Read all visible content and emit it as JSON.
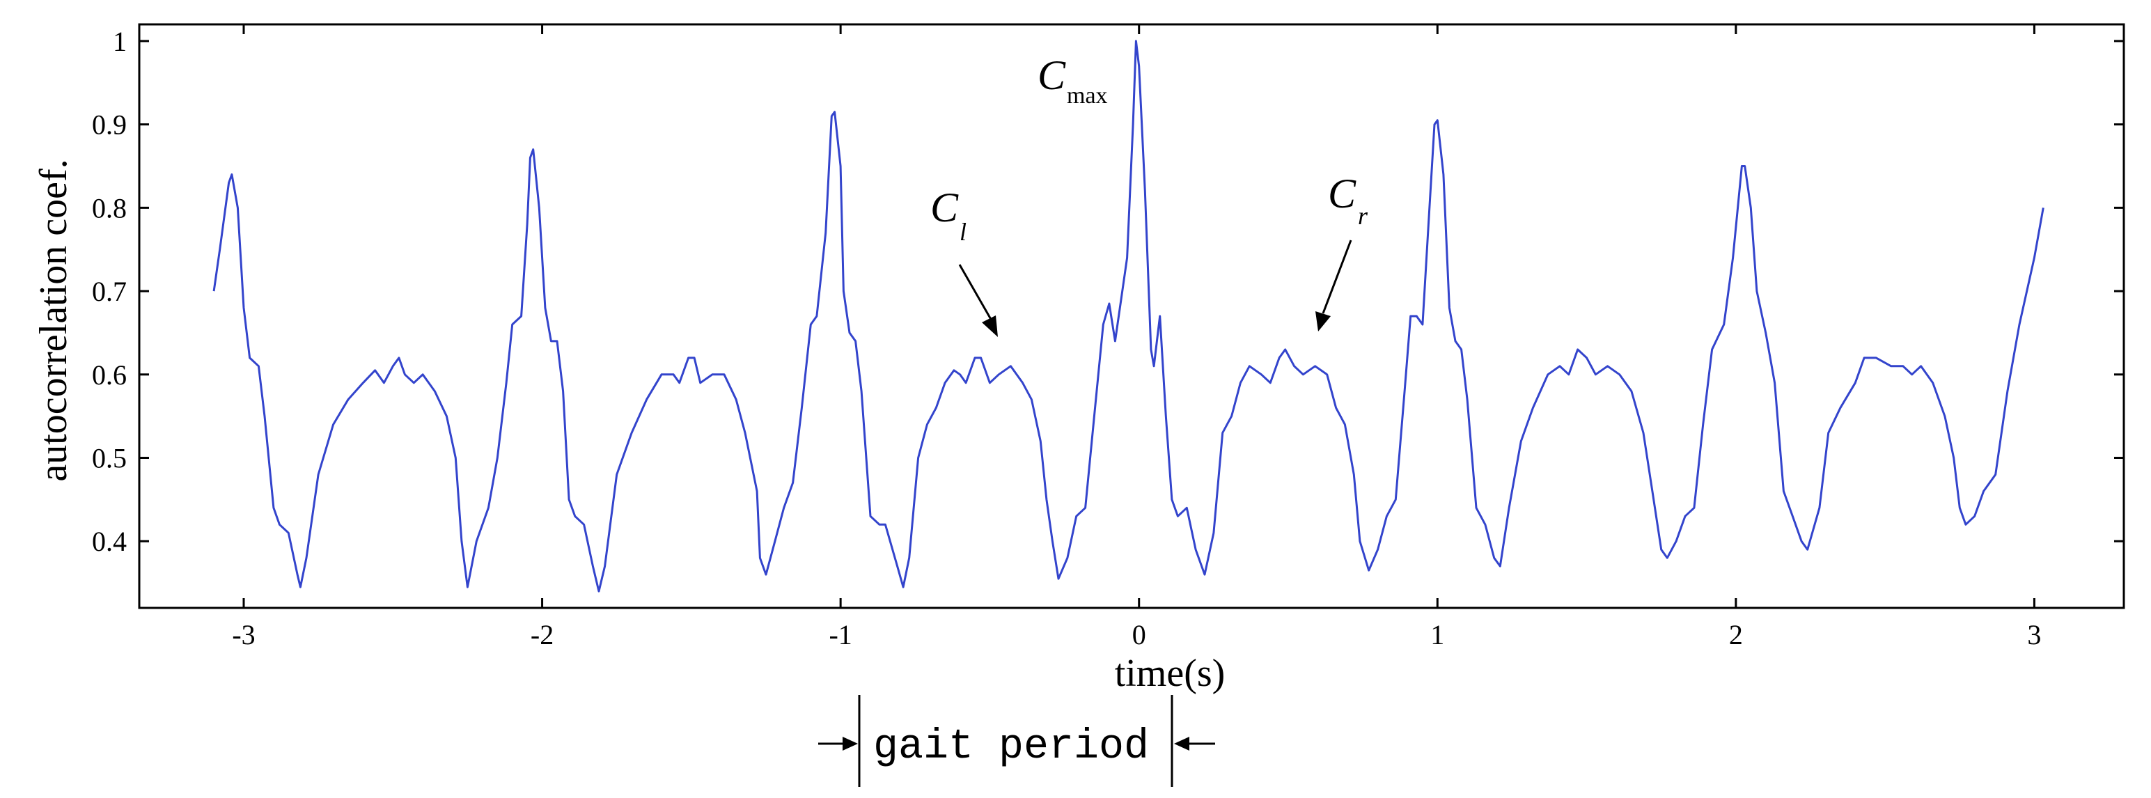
{
  "chart_data": {
    "type": "line",
    "title": "",
    "xlabel": "time(s)",
    "ylabel": "autocorrelation coef.",
    "xlim": [
      -3.35,
      3.3
    ],
    "ylim": [
      0.32,
      1.02
    ],
    "xticks": [
      -3,
      -2,
      -1,
      0,
      1,
      2,
      3
    ],
    "xtick_labels": [
      "-3",
      "-2",
      "-1",
      "0",
      "1",
      "2",
      "3"
    ],
    "yticks": [
      0.4,
      0.5,
      0.6,
      0.7,
      0.8,
      0.9,
      1.0
    ],
    "ytick_labels": [
      "0.4",
      "0.5",
      "0.6",
      "0.7",
      "0.8",
      "0.9",
      "1"
    ],
    "grid": false,
    "line_color": "#3344cc",
    "series": [
      {
        "points": [
          [
            -3.1,
            0.7
          ],
          [
            -3.08,
            0.75
          ],
          [
            -3.05,
            0.83
          ],
          [
            -3.04,
            0.84
          ],
          [
            -3.02,
            0.8
          ],
          [
            -3.0,
            0.68
          ],
          [
            -2.98,
            0.62
          ],
          [
            -2.95,
            0.61
          ],
          [
            -2.93,
            0.55
          ],
          [
            -2.9,
            0.44
          ],
          [
            -2.88,
            0.42
          ],
          [
            -2.85,
            0.41
          ],
          [
            -2.82,
            0.36
          ],
          [
            -2.81,
            0.345
          ],
          [
            -2.79,
            0.38
          ],
          [
            -2.75,
            0.48
          ],
          [
            -2.7,
            0.54
          ],
          [
            -2.65,
            0.57
          ],
          [
            -2.6,
            0.59
          ],
          [
            -2.56,
            0.605
          ],
          [
            -2.53,
            0.59
          ],
          [
            -2.5,
            0.61
          ],
          [
            -2.48,
            0.62
          ],
          [
            -2.46,
            0.6
          ],
          [
            -2.43,
            0.59
          ],
          [
            -2.4,
            0.6
          ],
          [
            -2.36,
            0.58
          ],
          [
            -2.32,
            0.55
          ],
          [
            -2.29,
            0.5
          ],
          [
            -2.27,
            0.4
          ],
          [
            -2.25,
            0.345
          ],
          [
            -2.22,
            0.4
          ],
          [
            -2.18,
            0.44
          ],
          [
            -2.15,
            0.5
          ],
          [
            -2.12,
            0.59
          ],
          [
            -2.1,
            0.66
          ],
          [
            -2.07,
            0.67
          ],
          [
            -2.05,
            0.78
          ],
          [
            -2.04,
            0.86
          ],
          [
            -2.03,
            0.87
          ],
          [
            -2.01,
            0.8
          ],
          [
            -1.99,
            0.68
          ],
          [
            -1.97,
            0.64
          ],
          [
            -1.95,
            0.64
          ],
          [
            -1.93,
            0.58
          ],
          [
            -1.91,
            0.45
          ],
          [
            -1.89,
            0.43
          ],
          [
            -1.86,
            0.42
          ],
          [
            -1.83,
            0.37
          ],
          [
            -1.81,
            0.34
          ],
          [
            -1.79,
            0.37
          ],
          [
            -1.75,
            0.48
          ],
          [
            -1.7,
            0.53
          ],
          [
            -1.65,
            0.57
          ],
          [
            -1.6,
            0.6
          ],
          [
            -1.56,
            0.6
          ],
          [
            -1.54,
            0.59
          ],
          [
            -1.51,
            0.62
          ],
          [
            -1.49,
            0.62
          ],
          [
            -1.47,
            0.59
          ],
          [
            -1.43,
            0.6
          ],
          [
            -1.39,
            0.6
          ],
          [
            -1.35,
            0.57
          ],
          [
            -1.32,
            0.53
          ],
          [
            -1.28,
            0.46
          ],
          [
            -1.27,
            0.38
          ],
          [
            -1.25,
            0.36
          ],
          [
            -1.22,
            0.4
          ],
          [
            -1.19,
            0.44
          ],
          [
            -1.16,
            0.47
          ],
          [
            -1.13,
            0.56
          ],
          [
            -1.1,
            0.66
          ],
          [
            -1.08,
            0.67
          ],
          [
            -1.05,
            0.77
          ],
          [
            -1.03,
            0.91
          ],
          [
            -1.02,
            0.915
          ],
          [
            -1.0,
            0.85
          ],
          [
            -0.99,
            0.7
          ],
          [
            -0.97,
            0.65
          ],
          [
            -0.95,
            0.64
          ],
          [
            -0.93,
            0.58
          ],
          [
            -0.9,
            0.43
          ],
          [
            -0.87,
            0.42
          ],
          [
            -0.85,
            0.42
          ],
          [
            -0.81,
            0.37
          ],
          [
            -0.79,
            0.345
          ],
          [
            -0.77,
            0.38
          ],
          [
            -0.74,
            0.5
          ],
          [
            -0.71,
            0.54
          ],
          [
            -0.68,
            0.56
          ],
          [
            -0.65,
            0.59
          ],
          [
            -0.62,
            0.605
          ],
          [
            -0.6,
            0.6
          ],
          [
            -0.58,
            0.59
          ],
          [
            -0.55,
            0.62
          ],
          [
            -0.53,
            0.62
          ],
          [
            -0.5,
            0.59
          ],
          [
            -0.47,
            0.6
          ],
          [
            -0.43,
            0.61
          ],
          [
            -0.39,
            0.59
          ],
          [
            -0.36,
            0.57
          ],
          [
            -0.33,
            0.52
          ],
          [
            -0.31,
            0.45
          ],
          [
            -0.29,
            0.4
          ],
          [
            -0.27,
            0.355
          ],
          [
            -0.24,
            0.38
          ],
          [
            -0.21,
            0.43
          ],
          [
            -0.18,
            0.44
          ],
          [
            -0.15,
            0.55
          ],
          [
            -0.12,
            0.66
          ],
          [
            -0.1,
            0.685
          ],
          [
            -0.08,
            0.64
          ],
          [
            -0.06,
            0.69
          ],
          [
            -0.04,
            0.74
          ],
          [
            -0.02,
            0.9
          ],
          [
            -0.01,
            1.0
          ],
          [
            0.0,
            0.97
          ],
          [
            0.02,
            0.82
          ],
          [
            0.04,
            0.63
          ],
          [
            0.05,
            0.61
          ],
          [
            0.07,
            0.67
          ],
          [
            0.09,
            0.55
          ],
          [
            0.11,
            0.45
          ],
          [
            0.13,
            0.43
          ],
          [
            0.16,
            0.44
          ],
          [
            0.19,
            0.39
          ],
          [
            0.22,
            0.36
          ],
          [
            0.25,
            0.41
          ],
          [
            0.28,
            0.53
          ],
          [
            0.31,
            0.55
          ],
          [
            0.34,
            0.59
          ],
          [
            0.37,
            0.61
          ],
          [
            0.41,
            0.6
          ],
          [
            0.44,
            0.59
          ],
          [
            0.47,
            0.62
          ],
          [
            0.49,
            0.63
          ],
          [
            0.52,
            0.61
          ],
          [
            0.55,
            0.6
          ],
          [
            0.59,
            0.61
          ],
          [
            0.63,
            0.6
          ],
          [
            0.66,
            0.56
          ],
          [
            0.69,
            0.54
          ],
          [
            0.72,
            0.48
          ],
          [
            0.74,
            0.4
          ],
          [
            0.77,
            0.365
          ],
          [
            0.8,
            0.39
          ],
          [
            0.83,
            0.43
          ],
          [
            0.86,
            0.45
          ],
          [
            0.89,
            0.58
          ],
          [
            0.91,
            0.67
          ],
          [
            0.93,
            0.67
          ],
          [
            0.95,
            0.66
          ],
          [
            0.97,
            0.78
          ],
          [
            0.99,
            0.9
          ],
          [
            1.0,
            0.905
          ],
          [
            1.02,
            0.84
          ],
          [
            1.04,
            0.68
          ],
          [
            1.06,
            0.64
          ],
          [
            1.08,
            0.63
          ],
          [
            1.1,
            0.57
          ],
          [
            1.13,
            0.44
          ],
          [
            1.16,
            0.42
          ],
          [
            1.19,
            0.38
          ],
          [
            1.21,
            0.37
          ],
          [
            1.24,
            0.44
          ],
          [
            1.28,
            0.52
          ],
          [
            1.32,
            0.56
          ],
          [
            1.37,
            0.6
          ],
          [
            1.41,
            0.61
          ],
          [
            1.44,
            0.6
          ],
          [
            1.47,
            0.63
          ],
          [
            1.5,
            0.62
          ],
          [
            1.53,
            0.6
          ],
          [
            1.57,
            0.61
          ],
          [
            1.61,
            0.6
          ],
          [
            1.65,
            0.58
          ],
          [
            1.69,
            0.53
          ],
          [
            1.72,
            0.46
          ],
          [
            1.75,
            0.39
          ],
          [
            1.77,
            0.38
          ],
          [
            1.8,
            0.4
          ],
          [
            1.83,
            0.43
          ],
          [
            1.86,
            0.44
          ],
          [
            1.89,
            0.54
          ],
          [
            1.92,
            0.63
          ],
          [
            1.96,
            0.66
          ],
          [
            1.99,
            0.74
          ],
          [
            2.02,
            0.85
          ],
          [
            2.03,
            0.85
          ],
          [
            2.05,
            0.8
          ],
          [
            2.07,
            0.7
          ],
          [
            2.1,
            0.65
          ],
          [
            2.13,
            0.59
          ],
          [
            2.16,
            0.46
          ],
          [
            2.19,
            0.43
          ],
          [
            2.22,
            0.4
          ],
          [
            2.24,
            0.39
          ],
          [
            2.28,
            0.44
          ],
          [
            2.31,
            0.53
          ],
          [
            2.35,
            0.56
          ],
          [
            2.4,
            0.59
          ],
          [
            2.43,
            0.62
          ],
          [
            2.47,
            0.62
          ],
          [
            2.52,
            0.61
          ],
          [
            2.56,
            0.61
          ],
          [
            2.59,
            0.6
          ],
          [
            2.62,
            0.61
          ],
          [
            2.66,
            0.59
          ],
          [
            2.7,
            0.55
          ],
          [
            2.73,
            0.5
          ],
          [
            2.75,
            0.44
          ],
          [
            2.77,
            0.42
          ],
          [
            2.8,
            0.43
          ],
          [
            2.83,
            0.46
          ],
          [
            2.87,
            0.48
          ],
          [
            2.91,
            0.58
          ],
          [
            2.95,
            0.66
          ],
          [
            3.0,
            0.74
          ],
          [
            3.03,
            0.8
          ]
        ]
      }
    ],
    "annotations": [
      {
        "main": "C",
        "sub": "max"
      },
      {
        "main": "C",
        "sub": "l"
      },
      {
        "main": "C",
        "sub": "r"
      },
      {
        "text": "gait period"
      }
    ]
  }
}
